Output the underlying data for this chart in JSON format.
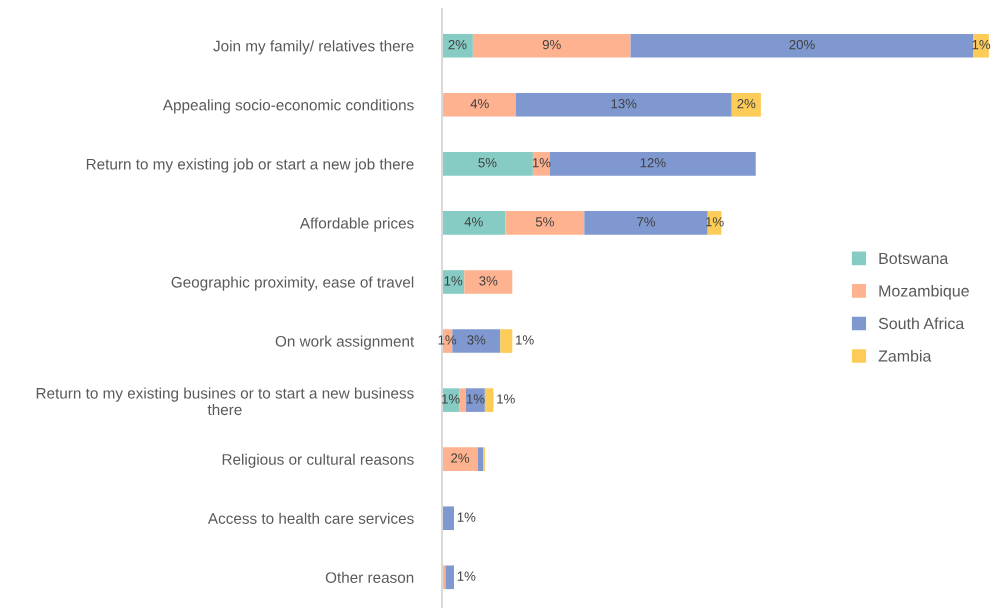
{
  "chart_data": {
    "type": "bar",
    "orientation": "horizontal",
    "stacked": true,
    "legend": "right",
    "grid": false,
    "categories": [
      "Join my family/ relatives there",
      "Appealing socio-economic conditions",
      "Return to my existing job or start a new job there",
      "Affordable prices",
      "Geographic proximity, ease of travel",
      "On work assignment",
      "Return to my existing busines or to start a new business\nthere",
      "Religious or cultural reasons",
      "Access to health care services",
      "Other reason"
    ],
    "series": [
      {
        "name": "Botswana",
        "color": "#86cbc4",
        "values": [
          1.8,
          0.1,
          5.3,
          3.7,
          1.3,
          0,
          1.0,
          0,
          0,
          0
        ],
        "value_labels": [
          "2%",
          null,
          "5%",
          "4%",
          "1%",
          null,
          "1%",
          null,
          null,
          null
        ]
      },
      {
        "name": "Mozambique",
        "color": "#feb28f",
        "values": [
          9.2,
          4.2,
          1.0,
          4.6,
          2.8,
          0.6,
          0.4,
          2.1,
          0,
          0.2
        ],
        "value_labels": [
          "9%",
          "4%",
          "1%",
          "5%",
          "3%",
          "1%",
          null,
          "2%",
          null,
          null
        ]
      },
      {
        "name": "South Africa",
        "color": "#7f98d0",
        "values": [
          20.0,
          12.6,
          12.0,
          7.2,
          0,
          2.8,
          1.1,
          0.3,
          0.7,
          0.5
        ],
        "value_labels": [
          "20%",
          "13%",
          "12%",
          "7%",
          null,
          "3%",
          "1%",
          null,
          "1%",
          "1%"
        ]
      },
      {
        "name": "Zambia",
        "color": "#fdcb57",
        "values": [
          0.9,
          1.7,
          0,
          0.8,
          0,
          0.7,
          0.5,
          0.1,
          0,
          0
        ],
        "value_labels": [
          "1%",
          "2%",
          null,
          "1%",
          null,
          "1%",
          "1%",
          null,
          null,
          null
        ]
      }
    ]
  }
}
